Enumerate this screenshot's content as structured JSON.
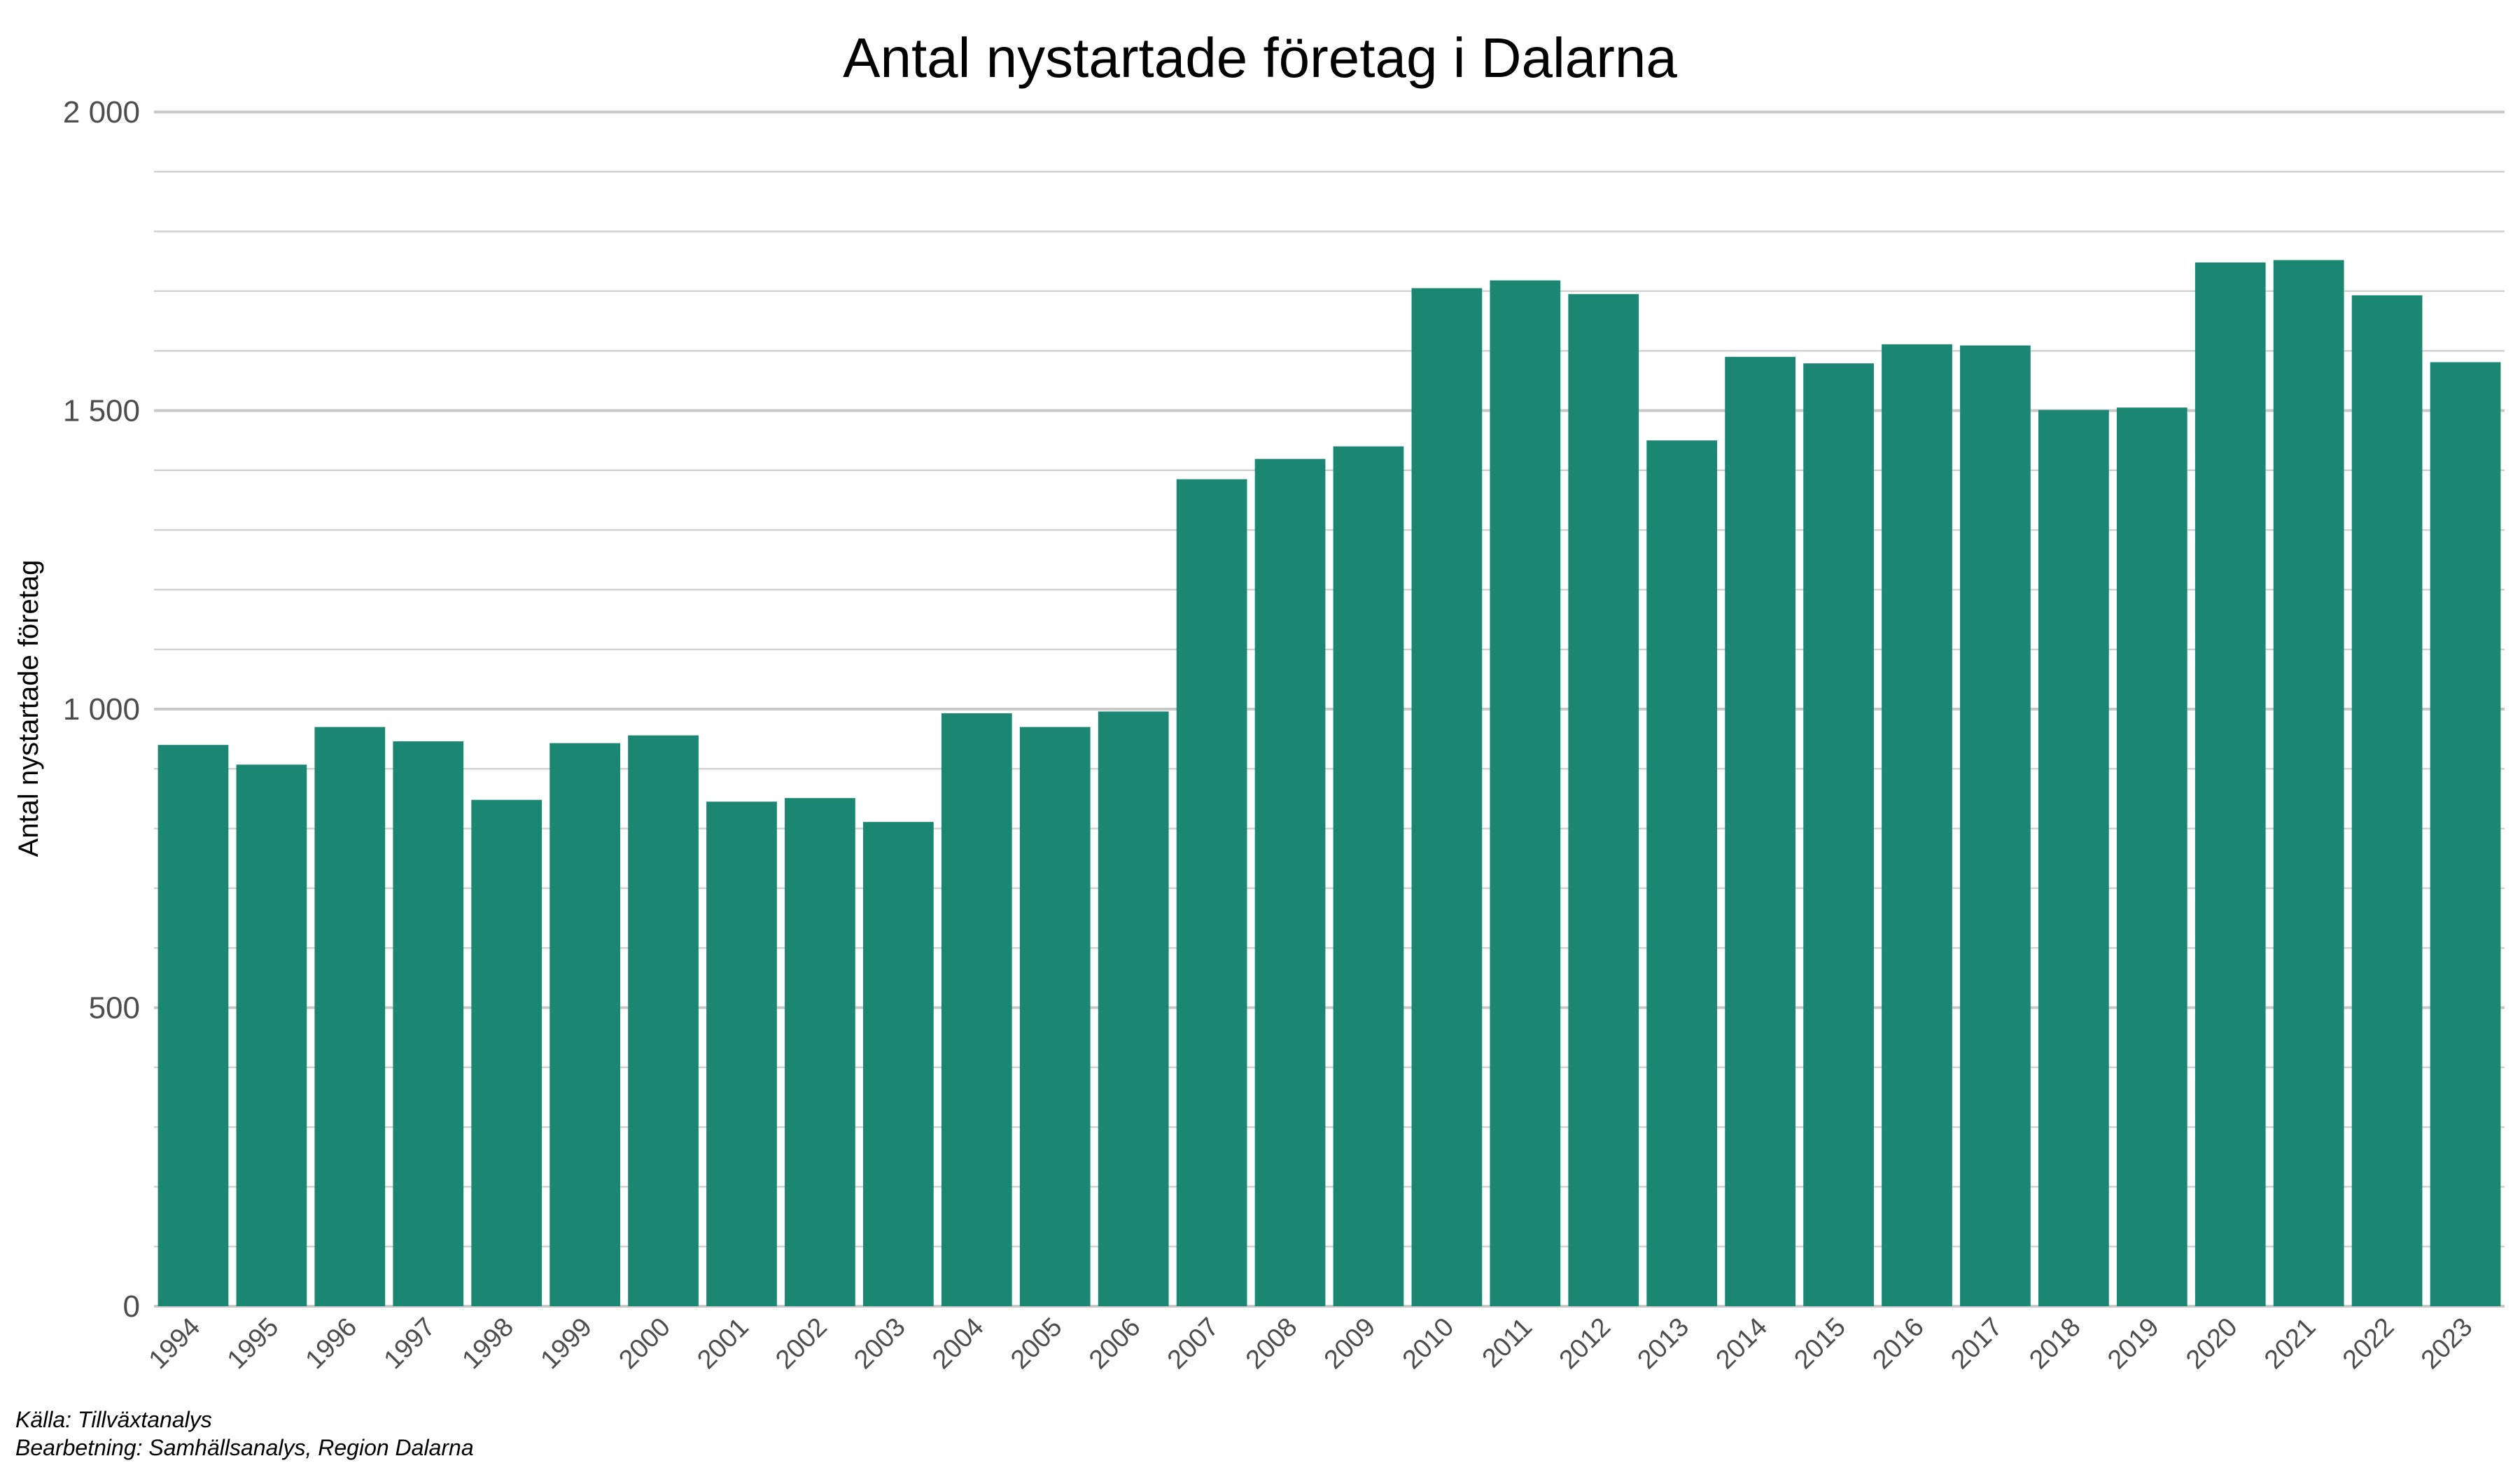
{
  "chart_data": {
    "type": "bar",
    "title": "Antal nystartade företag i Dalarna",
    "xlabel": "",
    "ylabel": "Antal nystartade företag",
    "ylim": [
      0,
      2000
    ],
    "yticks": [
      0,
      500,
      1000,
      1500,
      2000
    ],
    "ytick_labels": [
      "0",
      "500",
      "1 000",
      "1 500",
      "2 000"
    ],
    "grid": true,
    "legend": "none",
    "bar_color": "#1b8672",
    "categories": [
      "1994",
      "1995",
      "1996",
      "1997",
      "1998",
      "1999",
      "2000",
      "2001",
      "2002",
      "2003",
      "2004",
      "2005",
      "2006",
      "2007",
      "2008",
      "2009",
      "2010",
      "2011",
      "2012",
      "2013",
      "2014",
      "2015",
      "2016",
      "2017",
      "2018",
      "2019",
      "2020",
      "2021",
      "2022",
      "2023"
    ],
    "values": [
      940,
      907,
      970,
      946,
      848,
      943,
      956,
      845,
      851,
      811,
      993,
      970,
      996,
      1385,
      1419,
      1440,
      1705,
      1718,
      1695,
      1450,
      1590,
      1579,
      1611,
      1609,
      1501,
      1505,
      1748,
      1752,
      1693,
      1581
    ]
  },
  "caption": {
    "source": "Källa: Tillväxtanalys",
    "processing": "Bearbetning: Samhällsanalys, Region Dalarna"
  }
}
